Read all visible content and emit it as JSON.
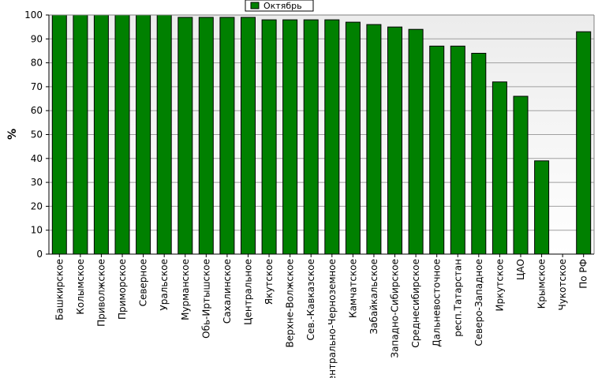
{
  "chart_data": {
    "type": "bar",
    "ylabel": "%",
    "ylim": [
      0,
      100
    ],
    "yticks": [
      0,
      10,
      20,
      30,
      40,
      50,
      60,
      70,
      80,
      90,
      100
    ],
    "grid": true,
    "legend": {
      "position": "top-center",
      "entries": [
        "Октябрь"
      ]
    },
    "categories": [
      "Башкирское",
      "Колымское",
      "Приволжское",
      "Приморское",
      "Северное",
      "Уральское",
      "Мурманское",
      "Обь-Иртышское",
      "Сахалинское",
      "Центральное",
      "Якутское",
      "Верхне-Волжское",
      "Сев.-Кавказское",
      "Центрально-Черноземное",
      "Камчатское",
      "Забайкальское",
      "Западно-Сибирское",
      "Среднесибирское",
      "Дальневосточное",
      "респ.Татарстан",
      "Северо-Западное",
      "Иркутское",
      "ЦАО",
      "Крымское",
      "Чукотское",
      "По РФ"
    ],
    "series": [
      {
        "name": "Октябрь",
        "color": "#008000",
        "values": [
          100,
          100,
          100,
          100,
          100,
          100,
          99,
          99,
          99,
          99,
          98,
          98,
          98,
          98,
          97,
          96,
          95,
          94,
          87,
          87,
          84,
          72,
          66,
          39,
          0,
          93
        ]
      }
    ]
  }
}
